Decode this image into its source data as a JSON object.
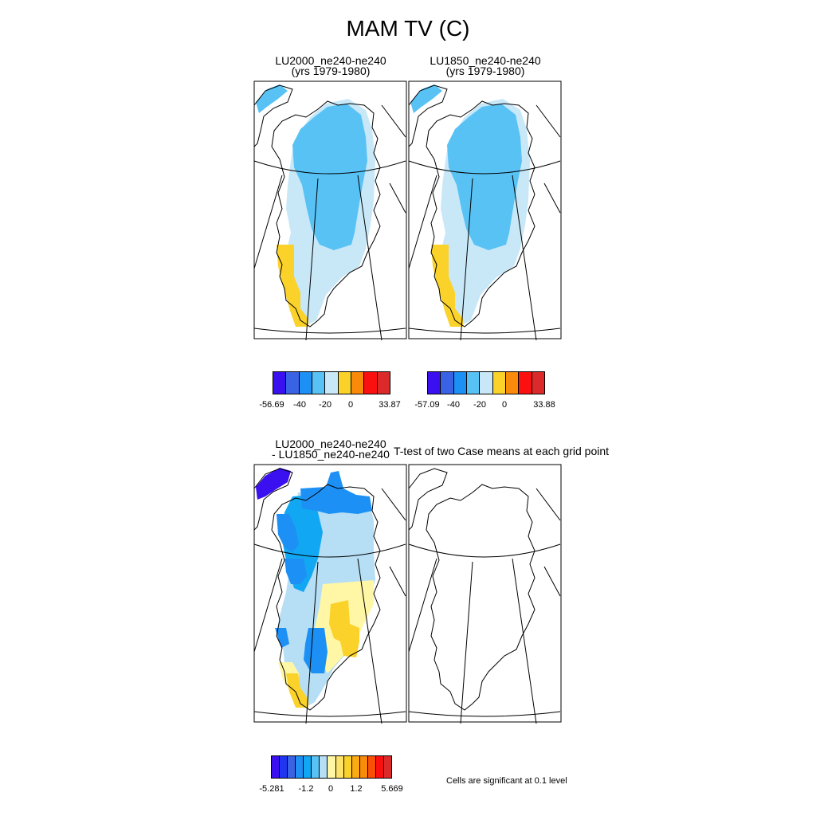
{
  "title": "MAM TV (C)",
  "panels": [
    {
      "title_line1": "LU2000_ne240-ne240",
      "title_line2": "(yrs 1979-1980)"
    },
    {
      "title_line1": "LU1850_ne240-ne240",
      "title_line2": "(yrs 1979-1980)"
    },
    {
      "title_line1": "LU2000_ne240-ne240",
      "title_line2": "- LU1850_ne240-ne240"
    },
    {
      "title_line1": "T-test of two Case means at each grid point",
      "title_line2": ""
    }
  ],
  "colorbars": [
    {
      "colors": [
        "#3b10f0",
        "#3a62e4",
        "#1d90f5",
        "#58c2f5",
        "#c8e8f8",
        "#fbd22a",
        "#f98a0a",
        "#fc0f0f",
        "#dc2a2a"
      ],
      "ticks": [
        "-56.69",
        "-40",
        "-20",
        "0",
        "33.87"
      ]
    },
    {
      "colors": [
        "#3b10f0",
        "#3a62e4",
        "#1d90f5",
        "#58c2f5",
        "#c8e8f8",
        "#fbd22a",
        "#f98a0a",
        "#fc0f0f",
        "#dc2a2a"
      ],
      "ticks": [
        "-57.09",
        "-40",
        "-20",
        "0",
        "33.88"
      ]
    },
    {
      "colors": [
        "#3b10f0",
        "#2035f0",
        "#3a62e4",
        "#1d90f5",
        "#12a7f2",
        "#58c2f5",
        "#b6def4",
        "#fff7a6",
        "#fde36a",
        "#fbd22a",
        "#fcaa12",
        "#f98a0a",
        "#fc4f06",
        "#fc0f0f",
        "#dc2a2a"
      ],
      "ticks": [
        "-5.281",
        "-1.2",
        "0",
        "1.2",
        "5.669"
      ]
    }
  ],
  "significance_note": "Cells are significant at 0.1 level",
  "chart_data": [
    {
      "type": "heatmap",
      "title": "LU2000_ne240-ne240 (yrs 1979-1980)",
      "variable": "MAM TV (C)",
      "range": [
        -56.69,
        33.87
      ],
      "regions": [
        {
          "area": "northern and central ice sheet",
          "value_band": [
            -30,
            -20
          ]
        },
        {
          "area": "ice sheet margins and south",
          "value_band": [
            -10,
            0
          ]
        },
        {
          "area": "southwest coast",
          "value_band": [
            0,
            10
          ]
        }
      ]
    },
    {
      "type": "heatmap",
      "title": "LU1850_ne240-ne240 (yrs 1979-1980)",
      "variable": "MAM TV (C)",
      "range": [
        -57.09,
        33.88
      ],
      "regions": [
        {
          "area": "northern and central ice sheet",
          "value_band": [
            -30,
            -20
          ]
        },
        {
          "area": "ice sheet margins and south",
          "value_band": [
            -10,
            0
          ]
        },
        {
          "area": "southwest coast",
          "value_band": [
            0,
            10
          ]
        }
      ]
    },
    {
      "type": "heatmap",
      "title": "LU2000_ne240-ne240 - LU1850_ne240-ne240",
      "variable": "MAM TV (C)",
      "range": [
        -5.281,
        5.669
      ],
      "regions": [
        {
          "area": "Ellesmere Island",
          "value_band": [
            -5.281,
            -4
          ]
        },
        {
          "area": "northern coast",
          "value_band": [
            -2.4,
            -1.2
          ]
        },
        {
          "area": "western margin",
          "value_band": [
            -1.2,
            -0.6
          ]
        },
        {
          "area": "east-central interior",
          "value_band": [
            0,
            1.2
          ]
        },
        {
          "area": "southern tip",
          "value_band": [
            0,
            0.6
          ]
        }
      ]
    },
    {
      "type": "heatmap",
      "title": "T-test of two Case means at each grid point",
      "note": "Cells are significant at 0.1 level",
      "regions": []
    }
  ]
}
